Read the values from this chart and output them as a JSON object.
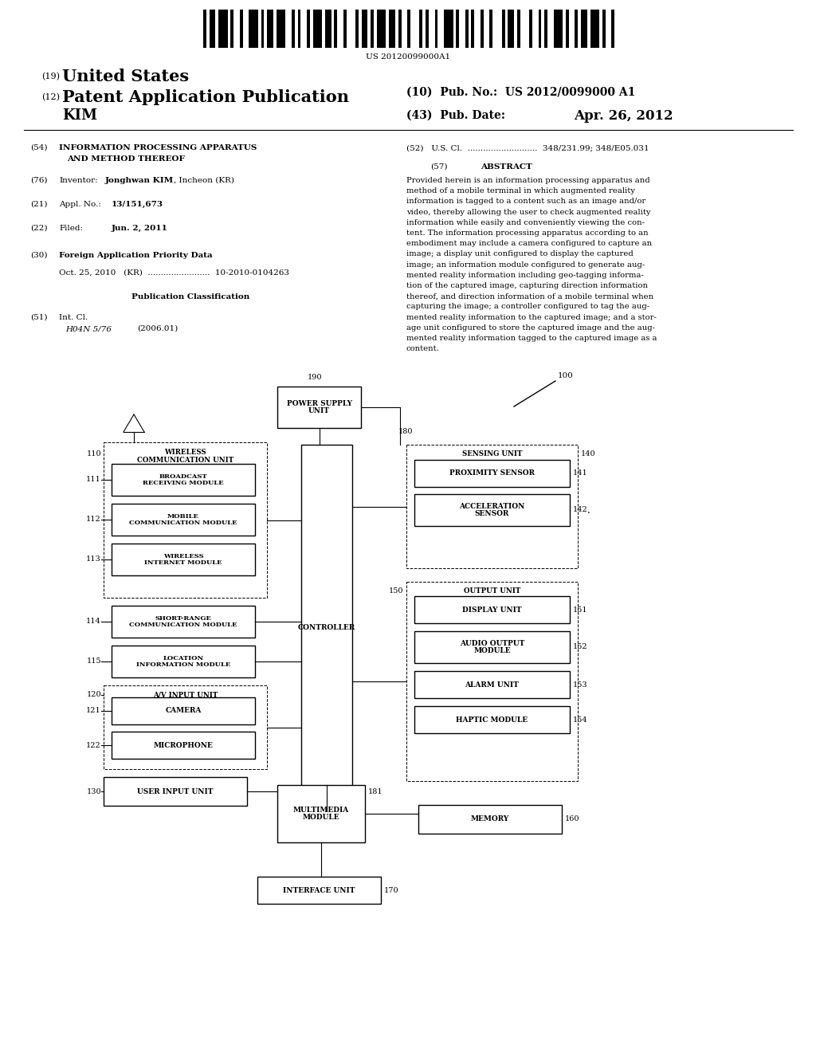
{
  "bg_color": "#ffffff",
  "page_width": 10.24,
  "page_height": 13.2,
  "barcode_text": "US 20120099000A1",
  "abstract_lines": [
    "Provided herein is an information processing apparatus and",
    "method of a mobile terminal in which augmented reality",
    "information is tagged to a content such as an image and/or",
    "video, thereby allowing the user to check augmented reality",
    "information while easily and conveniently viewing the con-",
    "tent. The information processing apparatus according to an",
    "embodiment may include a camera configured to capture an",
    "image; a display unit configured to display the captured",
    "image; an information module configured to generate aug-",
    "mented reality information including geo-tagging informa-",
    "tion of the captured image, capturing direction information",
    "thereof, and direction information of a mobile terminal when",
    "capturing the image; a controller configured to tag the aug-",
    "mented reality information to the captured image; and a stor-",
    "age unit configured to store the captured image and the aug-",
    "mented reality information tagged to the captured image as a",
    "content."
  ],
  "bar_pattern": [
    1,
    1,
    2,
    1,
    3,
    1,
    1,
    2,
    1,
    2,
    3,
    1,
    1,
    1,
    2,
    1,
    3,
    2,
    1,
    1,
    1,
    2,
    1,
    1,
    3,
    1,
    2,
    1,
    1,
    2,
    1,
    3,
    1,
    1,
    2,
    1,
    1,
    1,
    3,
    1,
    2,
    1,
    1,
    2,
    1,
    3,
    1,
    1,
    1,
    2,
    1,
    2,
    3,
    1,
    1,
    2,
    1,
    1,
    1,
    2,
    1,
    2,
    1,
    3,
    1,
    1,
    2,
    1,
    1,
    3,
    1,
    2,
    1,
    1,
    1,
    2,
    3,
    1,
    1,
    2,
    1,
    1,
    2,
    1,
    3,
    1,
    1,
    2,
    1,
    1
  ]
}
